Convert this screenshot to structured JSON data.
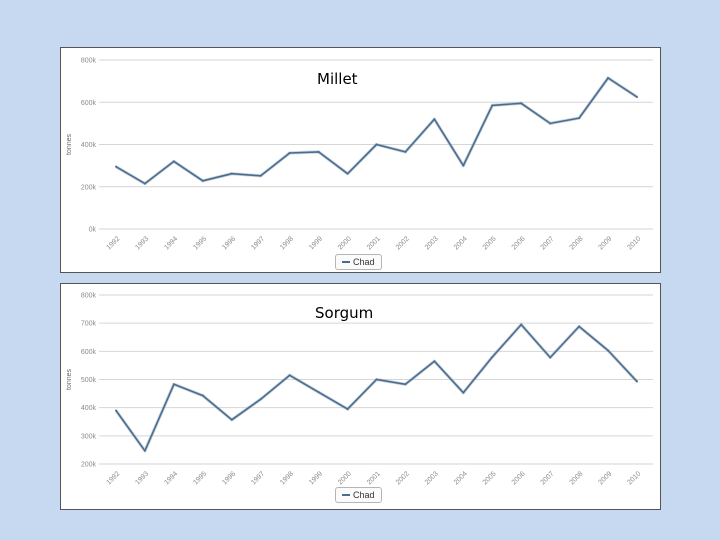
{
  "chart_data": [
    {
      "type": "line",
      "title": "Millet",
      "ylabel": "tonnes",
      "xlabel": "",
      "x": [
        "1992",
        "1993",
        "1994",
        "1995",
        "1996",
        "1997",
        "1998",
        "1999",
        "2000",
        "2001",
        "2002",
        "2003",
        "2004",
        "2005",
        "2006",
        "2007",
        "2008",
        "2009",
        "2010"
      ],
      "yticks": [
        "0k",
        "200k",
        "400k",
        "600k",
        "800k"
      ],
      "ylim": [
        0,
        800000
      ],
      "series": [
        {
          "name": "Chad",
          "color": "#4a6d8e",
          "values": [
            295000,
            215000,
            320000,
            228000,
            262000,
            252000,
            360000,
            365000,
            262000,
            400000,
            365000,
            520000,
            300000,
            585000,
            595000,
            500000,
            525000,
            715000,
            625000
          ]
        }
      ],
      "grid": true,
      "legend": "bottom-center"
    },
    {
      "type": "line",
      "title": "Sorgum",
      "ylabel": "tonnes",
      "xlabel": "",
      "x": [
        "1992",
        "1993",
        "1994",
        "1995",
        "1996",
        "1997",
        "1998",
        "1999",
        "2000",
        "2001",
        "2002",
        "2003",
        "2004",
        "2005",
        "2006",
        "2007",
        "2008",
        "2009",
        "2010"
      ],
      "yticks": [
        "200k",
        "300k",
        "400k",
        "500k",
        "600k",
        "700k",
        "800k"
      ],
      "ylim": [
        200000,
        800000
      ],
      "series": [
        {
          "name": "Chad",
          "color": "#4a6d8e",
          "values": [
            390000,
            247000,
            483000,
            443000,
            357000,
            430000,
            515000,
            455000,
            395000,
            500000,
            483000,
            565000,
            453000,
            580000,
            695000,
            578000,
            688000,
            603000,
            493000
          ]
        }
      ],
      "grid": true,
      "legend": "bottom-center"
    }
  ]
}
